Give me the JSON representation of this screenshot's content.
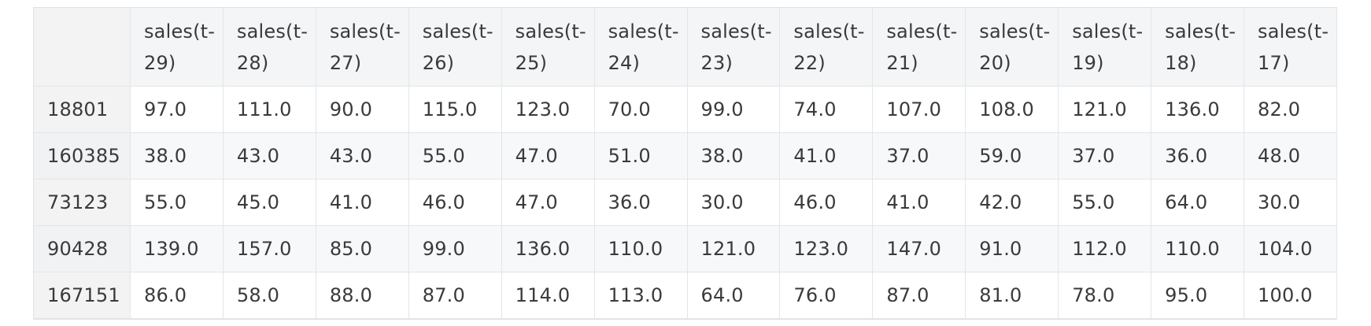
{
  "table": {
    "columns": [
      [
        "sales(t-",
        "29)"
      ],
      [
        "sales(t-",
        "28)"
      ],
      [
        "sales(t-",
        "27)"
      ],
      [
        "sales(t-",
        "26)"
      ],
      [
        "sales(t-",
        "25)"
      ],
      [
        "sales(t-",
        "24)"
      ],
      [
        "sales(t-",
        "23)"
      ],
      [
        "sales(t-",
        "22)"
      ],
      [
        "sales(t-",
        "21)"
      ],
      [
        "sales(t-",
        "20)"
      ],
      [
        "sales(t-",
        "19)"
      ],
      [
        "sales(t-",
        "18)"
      ],
      [
        "sales(t-",
        "17)"
      ]
    ],
    "rows": [
      {
        "index": "18801",
        "values": [
          "97.0",
          "111.0",
          "90.0",
          "115.0",
          "123.0",
          "70.0",
          "99.0",
          "74.0",
          "107.0",
          "108.0",
          "121.0",
          "136.0",
          "82.0"
        ]
      },
      {
        "index": "160385",
        "values": [
          "38.0",
          "43.0",
          "43.0",
          "55.0",
          "47.0",
          "51.0",
          "38.0",
          "41.0",
          "37.0",
          "59.0",
          "37.0",
          "36.0",
          "48.0"
        ]
      },
      {
        "index": "73123",
        "values": [
          "55.0",
          "45.0",
          "41.0",
          "46.0",
          "47.0",
          "36.0",
          "30.0",
          "46.0",
          "41.0",
          "42.0",
          "55.0",
          "64.0",
          "30.0"
        ]
      },
      {
        "index": "90428",
        "values": [
          "139.0",
          "157.0",
          "85.0",
          "99.0",
          "136.0",
          "110.0",
          "121.0",
          "123.0",
          "147.0",
          "91.0",
          "112.0",
          "110.0",
          "104.0"
        ]
      },
      {
        "index": "167151",
        "values": [
          "86.0",
          "58.0",
          "88.0",
          "87.0",
          "114.0",
          "113.0",
          "64.0",
          "76.0",
          "87.0",
          "81.0",
          "78.0",
          "95.0",
          "100.0"
        ]
      }
    ]
  }
}
